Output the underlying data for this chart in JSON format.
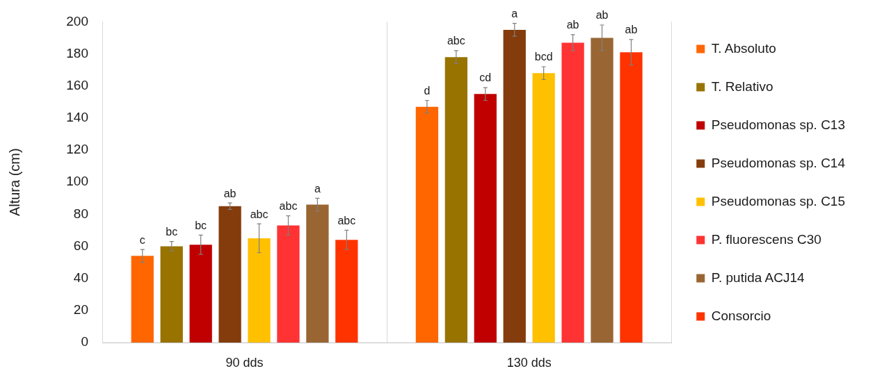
{
  "chart_data": {
    "type": "bar",
    "ylabel": "Altura (cm)",
    "categories": [
      "90 dds",
      "130 dds"
    ],
    "series": [
      {
        "name": "T. Absoluto",
        "color": "#ff6600",
        "values": [
          54,
          147
        ],
        "errors": [
          4,
          4
        ],
        "value_labels": [
          "c",
          "d"
        ]
      },
      {
        "name": "T. Relativo",
        "color": "#997300",
        "values": [
          60,
          178
        ],
        "errors": [
          3,
          4
        ],
        "value_labels": [
          "bc",
          "abc"
        ]
      },
      {
        "name": "Pseudomonas sp. C13",
        "color": "#c00000",
        "values": [
          61,
          155
        ],
        "errors": [
          6,
          4
        ],
        "value_labels": [
          "bc",
          "cd"
        ]
      },
      {
        "name": "Pseudomonas sp. C14",
        "color": "#843c0c",
        "values": [
          85,
          195
        ],
        "errors": [
          2,
          4
        ],
        "value_labels": [
          "ab",
          "a"
        ]
      },
      {
        "name": "Pseudomonas sp. C15",
        "color": "#ffc000",
        "values": [
          65,
          168
        ],
        "errors": [
          9,
          4
        ],
        "value_labels": [
          "abc",
          "bcd"
        ]
      },
      {
        "name": "P. fluorescens C30",
        "color": "#ff3333",
        "values": [
          73,
          187
        ],
        "errors": [
          6,
          5
        ],
        "value_labels": [
          "abc",
          "ab"
        ]
      },
      {
        "name": "P. putida ACJ14",
        "color": "#996633",
        "values": [
          86,
          190
        ],
        "errors": [
          4,
          8
        ],
        "value_labels": [
          "a",
          "ab"
        ]
      },
      {
        "name": "Consorcio",
        "color": "#ff3300",
        "values": [
          64,
          181
        ],
        "errors": [
          6,
          8
        ],
        "value_labels": [
          "abc",
          "ab"
        ]
      }
    ],
    "ylim": [
      0,
      200
    ],
    "yticks": [
      0,
      20,
      40,
      60,
      80,
      100,
      120,
      140,
      160,
      180,
      200
    ],
    "grid": "x",
    "legend": "right"
  }
}
